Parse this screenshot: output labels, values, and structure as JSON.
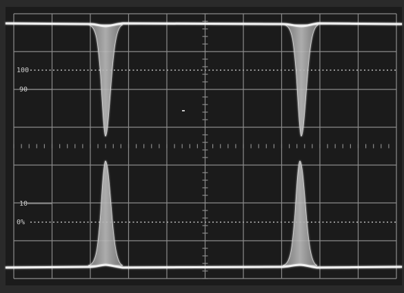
{
  "graticule_labels": [
    "100",
    "90",
    "10",
    "0%"
  ]
}
